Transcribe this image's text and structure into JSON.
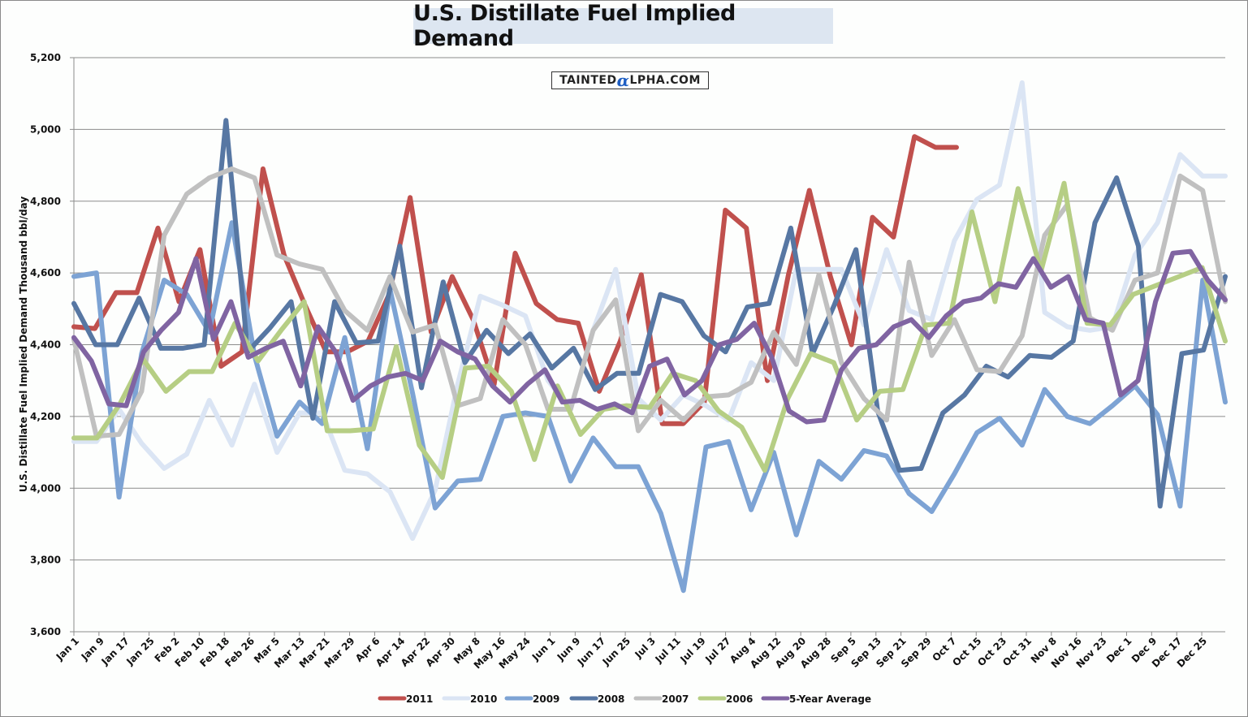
{
  "chart_data": {
    "type": "line",
    "title": "U.S. Distillate Fuel Implied Demand",
    "watermark": {
      "prefix": "TAINTED",
      "alpha": "α",
      "suffix": "LPHA.COM"
    },
    "xlabel": "",
    "ylabel": "U.S. Distillate Fuel Implied Demand Thousand bbl/day",
    "ylim": [
      3600,
      5200
    ],
    "yticks": [
      3600,
      3800,
      4000,
      4200,
      4400,
      4600,
      4800,
      5000,
      5200
    ],
    "ytick_labels": [
      "3,600",
      "3,800",
      "4,000",
      "4,200",
      "4,400",
      "4,600",
      "4,800",
      "5,000",
      "5,200"
    ],
    "grid": true,
    "legend_position": "bottom",
    "x_tick_labels": [
      "Jan 1",
      "Jan 9",
      "Jan 17",
      "Jan 25",
      "Feb 2",
      "Feb 10",
      "Feb 18",
      "Feb 26",
      "Mar 5",
      "Mar 13",
      "Mar 21",
      "Mar 29",
      "Apr 6",
      "Apr 14",
      "Apr 22",
      "Apr 30",
      "May 8",
      "May 16",
      "May 24",
      "Jun 1",
      "Jun 9",
      "Jun 17",
      "Jun 25",
      "Jul 3",
      "Jul 11",
      "Jul 19",
      "Jul 27",
      "Aug 4",
      "Aug 12",
      "Aug 20",
      "Aug 28",
      "Sep 5",
      "Sep 13",
      "Sep 21",
      "Sep 29",
      "Oct 7",
      "Oct 15",
      "Oct 23",
      "Oct 31",
      "Nov 8",
      "Nov 16",
      "Nov 23",
      "Dec 1",
      "Dec 9",
      "Dec 17",
      "Dec 25"
    ],
    "x_weeks": 52,
    "series": [
      {
        "name": "2011",
        "color": "#c0504d",
        "values": [
          4450,
          4445,
          4545,
          4545,
          4725,
          4520,
          4665,
          4340,
          4380,
          4890,
          4650,
          4510,
          4380,
          4380,
          4410,
          4540,
          4810,
          4435,
          4590,
          4470,
          4290,
          4655,
          4515,
          4470,
          4460,
          4270,
          4410,
          4595,
          4180,
          4180,
          4240,
          4775,
          4725,
          4300,
          4595,
          4830,
          4590,
          4400,
          4755,
          4700,
          4980,
          4950,
          4950
        ]
      },
      {
        "name": "2010",
        "color": "#dbe5f4",
        "values": [
          4130,
          4130,
          4220,
          4125,
          4055,
          4095,
          4245,
          4120,
          4290,
          4100,
          4210,
          4210,
          4050,
          4040,
          3990,
          3860,
          3995,
          4290,
          4535,
          4510,
          4480,
          4300,
          4220,
          4440,
          4610,
          4250,
          4190,
          4260,
          4230,
          4190,
          4350,
          4300,
          4610,
          4610,
          4610,
          4455,
          4665,
          4495,
          4470,
          4690,
          4805,
          4845,
          5130,
          4490,
          4450,
          4440,
          4450,
          4650,
          4740,
          4930,
          4870,
          4870
        ]
      },
      {
        "name": "2009",
        "color": "#7da3d4",
        "values": [
          4590,
          4600,
          3975,
          4375,
          4580,
          4540,
          4435,
          4740,
          4370,
          4145,
          4240,
          4180,
          4420,
          4110,
          4555,
          4265,
          3945,
          4020,
          4025,
          4200,
          4210,
          4200,
          4020,
          4140,
          4060,
          4060,
          3930,
          3715,
          4115,
          4130,
          3940,
          4100,
          3870,
          4075,
          4025,
          4105,
          4090,
          3985,
          3935,
          4040,
          4155,
          4195,
          4120,
          4275,
          4200,
          4180,
          4230,
          4285,
          4205,
          3950,
          4580,
          4240
        ]
      },
      {
        "name": "2008",
        "color": "#5777a3",
        "values": [
          4515,
          4400,
          4400,
          4530,
          4390,
          4390,
          4400,
          5025,
          4380,
          4445,
          4520,
          4195,
          4520,
          4405,
          4410,
          4675,
          4280,
          4575,
          4350,
          4440,
          4375,
          4430,
          4335,
          4390,
          4275,
          4320,
          4320,
          4540,
          4520,
          4425,
          4380,
          4505,
          4515,
          4725,
          4375,
          4510,
          4665,
          4215,
          4050,
          4055,
          4210,
          4260,
          4340,
          4310,
          4370,
          4365,
          4410,
          4740,
          4865,
          4675,
          3950,
          4375,
          4385,
          4590
        ]
      },
      {
        "name": "2007",
        "color": "#c0c0c0",
        "values": [
          4415,
          4145,
          4150,
          4270,
          4705,
          4820,
          4865,
          4890,
          4865,
          4650,
          4625,
          4610,
          4495,
          4440,
          4590,
          4435,
          4455,
          4230,
          4250,
          4470,
          4400,
          4220,
          4220,
          4440,
          4525,
          4160,
          4245,
          4190,
          4255,
          4260,
          4295,
          4435,
          4345,
          4595,
          4350,
          4250,
          4190,
          4630,
          4370,
          4470,
          4330,
          4325,
          4425,
          4705,
          4790,
          4475,
          4440,
          4580,
          4600,
          4870,
          4830,
          4520
        ]
      },
      {
        "name": "2006",
        "color": "#b6ce84",
        "values": [
          4140,
          4140,
          4235,
          4360,
          4270,
          4325,
          4325,
          4460,
          4355,
          4440,
          4520,
          4160,
          4160,
          4165,
          4395,
          4120,
          4030,
          4335,
          4340,
          4270,
          4080,
          4285,
          4150,
          4220,
          4230,
          4225,
          4320,
          4300,
          4215,
          4170,
          4050,
          4250,
          4375,
          4350,
          4190,
          4270,
          4275,
          4455,
          4460,
          4770,
          4520,
          4835,
          4605,
          4850,
          4460,
          4455,
          4540,
          4565,
          4590,
          4615,
          4410
        ]
      },
      {
        "name": "5-Year Average",
        "color": "#8064a2",
        "values": [
          4420,
          4355,
          4235,
          4230,
          4380,
          4440,
          4490,
          4640,
          4415,
          4520,
          4365,
          4390,
          4410,
          4285,
          4450,
          4380,
          4245,
          4285,
          4310,
          4320,
          4300,
          4410,
          4380,
          4360,
          4285,
          4240,
          4290,
          4330,
          4240,
          4245,
          4220,
          4235,
          4210,
          4340,
          4360,
          4260,
          4300,
          4400,
          4415,
          4460,
          4365,
          4215,
          4185,
          4190,
          4330,
          4390,
          4400,
          4450,
          4470,
          4420,
          4480,
          4520,
          4530,
          4570,
          4560,
          4640,
          4560,
          4590,
          4470,
          4460,
          4260,
          4300,
          4520,
          4655,
          4660,
          4580,
          4525
        ]
      }
    ]
  }
}
